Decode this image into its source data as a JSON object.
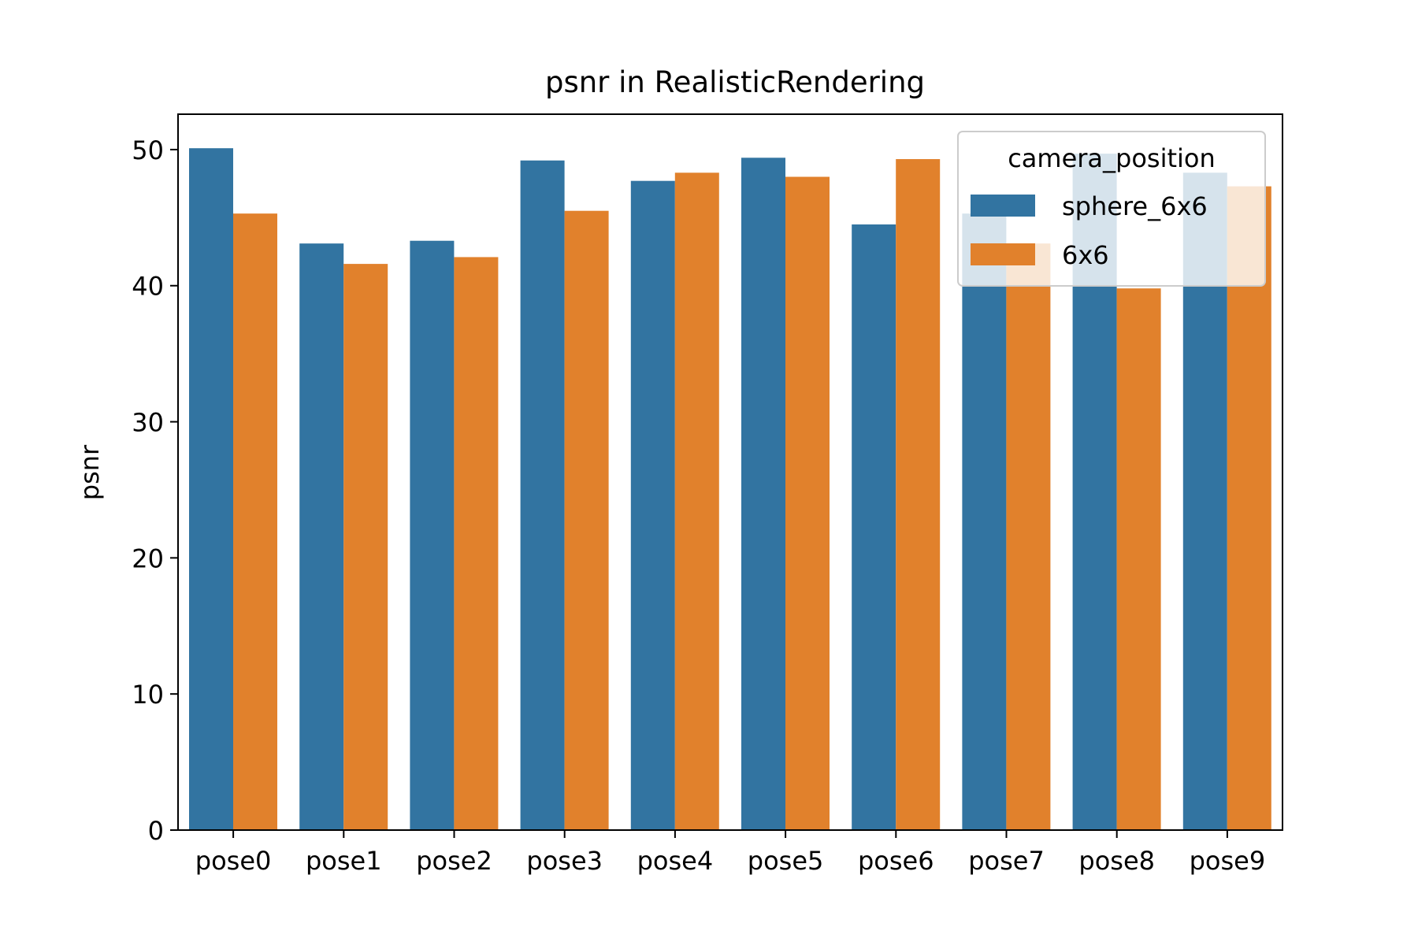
{
  "chart_data": {
    "type": "bar",
    "title": "psnr in RealisticRendering",
    "xlabel": "",
    "ylabel": "psnr",
    "categories": [
      "pose0",
      "pose1",
      "pose2",
      "pose3",
      "pose4",
      "pose5",
      "pose6",
      "pose7",
      "pose8",
      "pose9"
    ],
    "series": [
      {
        "name": "sphere_6x6",
        "color": "#3274a1",
        "values": [
          50.1,
          43.1,
          43.3,
          49.2,
          47.7,
          49.4,
          44.5,
          45.3,
          49.7,
          48.3
        ]
      },
      {
        "name": "6x6",
        "color": "#e1812c",
        "values": [
          45.3,
          41.6,
          42.1,
          45.5,
          48.3,
          48.0,
          49.3,
          43.1,
          39.8,
          47.3
        ]
      }
    ],
    "ylim": [
      0,
      52.6
    ],
    "yticks": [
      0,
      10,
      20,
      30,
      40,
      50
    ],
    "grid": false,
    "legend": {
      "title": "camera_position",
      "placement": "top-right"
    }
  }
}
